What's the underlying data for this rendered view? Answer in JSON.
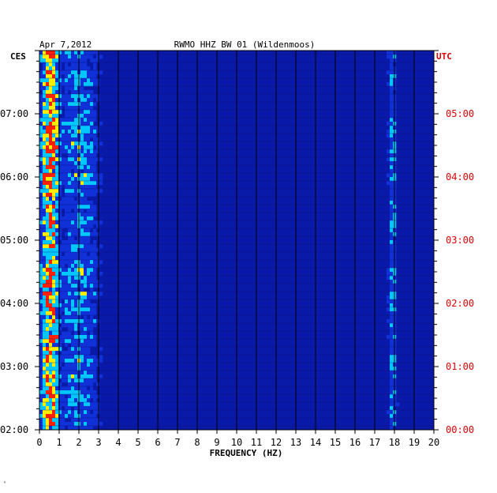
{
  "header": {
    "date": "Apr 7,2012",
    "station": "RWMO HHZ BW 01 (Wildenmoos)"
  },
  "axes": {
    "left_tz": "CES",
    "right_tz": "UTC",
    "xlabel": "FREQUENCY (HZ)"
  },
  "footer_mark": "ⁿ",
  "colors": {
    "background": "#0a1aa8",
    "grid": "#000000",
    "text": "#000000",
    "utc": "#dd0000",
    "low": "#1030d8",
    "mid": "#00c8ff",
    "high": "#ffee00",
    "peak": "#ff2000"
  },
  "chart_data": {
    "type": "heatmap",
    "title": "RWMO HHZ BW 01 (Wildenmoos)",
    "xlabel": "FREQUENCY (HZ)",
    "ylabel": "",
    "xlim": [
      0,
      20
    ],
    "x_ticks": [
      "0",
      "1",
      "2",
      "3",
      "4",
      "5",
      "6",
      "7",
      "8",
      "9",
      "10",
      "11",
      "12",
      "13",
      "14",
      "15",
      "16",
      "17",
      "18",
      "19",
      "20"
    ],
    "y_ticks_local": [
      "07:00",
      "06:00",
      "05:00",
      "04:00",
      "03:00",
      "02:00"
    ],
    "y_ticks_utc": [
      "05:00",
      "04:00",
      "03:00",
      "02:00",
      "01:00",
      "00:00"
    ],
    "y_tick_hours_utc": [
      5,
      4,
      3,
      2,
      1,
      0
    ],
    "ylim_hours_utc": [
      0,
      6
    ],
    "energy_bands": [
      {
        "freq_range_hz": [
          0.1,
          1.0
        ],
        "level": "high"
      },
      {
        "freq_range_hz": [
          1.0,
          3.0
        ],
        "level": "medium"
      },
      {
        "freq_range_hz": [
          17.7,
          18.1
        ],
        "level": "medium"
      }
    ]
  }
}
